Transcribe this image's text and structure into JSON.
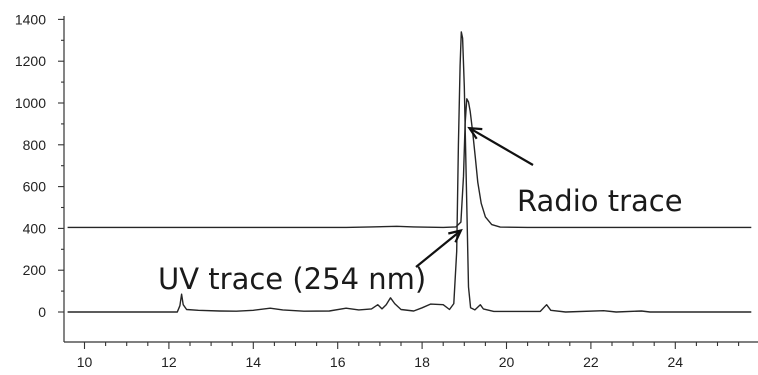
{
  "chart_data": {
    "type": "line",
    "title": "",
    "xlabel": "",
    "ylabel": "",
    "xlim": [
      9.6,
      25.8
    ],
    "ylim": [
      -90,
      1420
    ],
    "x_ticks": [
      10,
      12,
      14,
      16,
      18,
      20,
      22,
      24
    ],
    "y_ticks": [
      0,
      200,
      400,
      600,
      800,
      1000,
      1200,
      1400
    ],
    "grid": false,
    "series": [
      {
        "name": "Radio trace",
        "points": [
          [
            9.6,
            405
          ],
          [
            16.2,
            405
          ],
          [
            16.8,
            407
          ],
          [
            17.4,
            410
          ],
          [
            17.8,
            407
          ],
          [
            18.5,
            405
          ],
          [
            18.8,
            407
          ],
          [
            18.92,
            430
          ],
          [
            18.98,
            650
          ],
          [
            19.02,
            900
          ],
          [
            19.06,
            1020
          ],
          [
            19.1,
            1005
          ],
          [
            19.14,
            960
          ],
          [
            19.2,
            860
          ],
          [
            19.26,
            740
          ],
          [
            19.32,
            620
          ],
          [
            19.4,
            520
          ],
          [
            19.5,
            455
          ],
          [
            19.65,
            418
          ],
          [
            19.85,
            406
          ],
          [
            20.5,
            405
          ],
          [
            25.8,
            405
          ]
        ]
      },
      {
        "name": "UV trace (254 nm)",
        "points": [
          [
            9.6,
            0
          ],
          [
            12.2,
            0
          ],
          [
            12.26,
            30
          ],
          [
            12.3,
            85
          ],
          [
            12.34,
            35
          ],
          [
            12.42,
            12
          ],
          [
            12.7,
            8
          ],
          [
            13.2,
            5
          ],
          [
            13.6,
            4
          ],
          [
            14.0,
            8
          ],
          [
            14.4,
            18
          ],
          [
            14.7,
            10
          ],
          [
            15.2,
            4
          ],
          [
            15.8,
            5
          ],
          [
            16.2,
            18
          ],
          [
            16.5,
            10
          ],
          [
            16.8,
            15
          ],
          [
            16.95,
            35
          ],
          [
            17.05,
            15
          ],
          [
            17.15,
            35
          ],
          [
            17.25,
            68
          ],
          [
            17.35,
            40
          ],
          [
            17.5,
            12
          ],
          [
            17.8,
            5
          ],
          [
            18.0,
            20
          ],
          [
            18.2,
            38
          ],
          [
            18.5,
            35
          ],
          [
            18.65,
            12
          ],
          [
            18.75,
            40
          ],
          [
            18.82,
            290
          ],
          [
            18.86,
            800
          ],
          [
            18.9,
            1180
          ],
          [
            18.93,
            1340
          ],
          [
            18.96,
            1310
          ],
          [
            19.0,
            1080
          ],
          [
            19.05,
            600
          ],
          [
            19.1,
            120
          ],
          [
            19.15,
            20
          ],
          [
            19.25,
            10
          ],
          [
            19.38,
            35
          ],
          [
            19.45,
            15
          ],
          [
            19.7,
            3
          ],
          [
            20.8,
            3
          ],
          [
            20.95,
            35
          ],
          [
            21.05,
            8
          ],
          [
            21.4,
            0
          ],
          [
            22.3,
            6
          ],
          [
            22.6,
            0
          ],
          [
            23.2,
            5
          ],
          [
            23.4,
            0
          ],
          [
            25.8,
            0
          ]
        ]
      }
    ],
    "annotations": [
      {
        "text": "Radio trace",
        "arrow_to": [
          19.12,
          880
        ]
      },
      {
        "text": "UV trace (254 nm)",
        "arrow_to": [
          18.92,
          390
        ]
      }
    ]
  }
}
